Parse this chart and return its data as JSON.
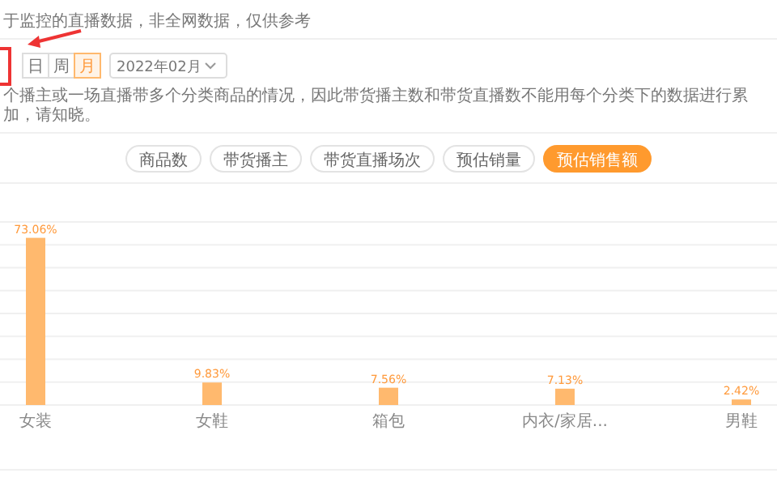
{
  "chart_data": {
    "type": "bar",
    "categories": [
      "女装",
      "女鞋",
      "箱包",
      "内衣/家居...",
      "男鞋"
    ],
    "values": [
      73.06,
      9.83,
      7.56,
      7.13,
      2.42
    ],
    "value_labels": [
      "73.06%",
      "9.83%",
      "7.56%",
      "7.13%",
      "2.42%"
    ],
    "color": "#ffb96e",
    "ylim": [
      0,
      80
    ],
    "yticks": [
      {
        "value": 0,
        "label": null
      },
      {
        "value": 10,
        "label": null
      },
      {
        "value": 20,
        "label": null
      },
      {
        "value": 30,
        "label": null
      },
      {
        "value": 40,
        "label": null
      },
      {
        "value": 50,
        "label": null
      },
      {
        "value": 60,
        "label": null
      },
      {
        "value": 70,
        "label": null
      },
      {
        "value": 80,
        "label": null
      }
    ],
    "grid": "y",
    "tick_labels": "x",
    "annotations": [
      "于监控的直播数据，非全网数据，仅供参考",
      "日",
      "周",
      "月",
      "2022年02月",
      "个播主或一场直播带多个分类商品的情况，因此带货播主数和带货直播数不能用每个分类下的数据进行累加，请知晓。",
      "商品数",
      "带货播主",
      "带货直播场次",
      "预估销量",
      "预估销售额"
    ]
  }
}
